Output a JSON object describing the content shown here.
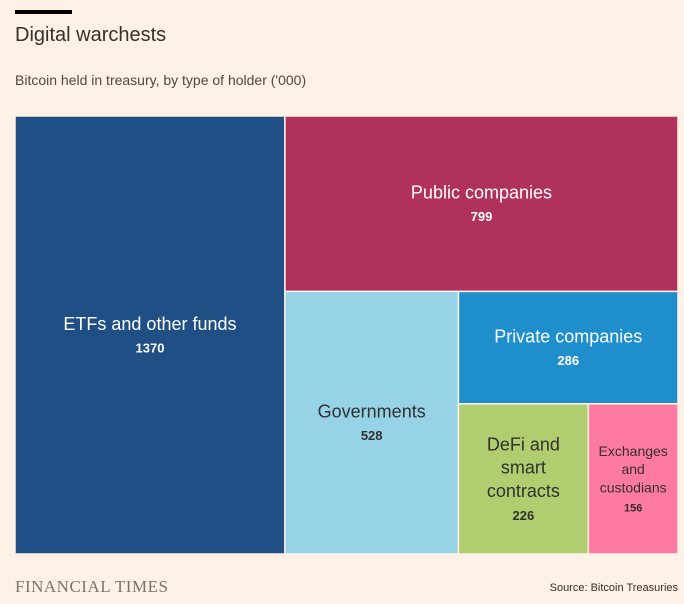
{
  "title": "Digital warchests",
  "subtitle": "Bitcoin held in treasury, by type of holder ('000)",
  "source": "Source: Bitcoin Treasuries",
  "logo": "FINANCIAL TIMES",
  "chart_data": {
    "type": "treemap",
    "title": "Digital warchests",
    "subtitle": "Bitcoin held in treasury, by type of holder ('000)",
    "unit": "thousand BTC",
    "items": [
      {
        "name": "ETFs and other funds",
        "label_lines": [
          "ETFs and other funds"
        ],
        "value": 1370,
        "color": "#1f4f85",
        "text_color": "#ffffff"
      },
      {
        "name": "Public companies",
        "label_lines": [
          "Public companies"
        ],
        "value": 799,
        "color": "#b0315c",
        "text_color": "#ffffff"
      },
      {
        "name": "Governments",
        "label_lines": [
          "Governments"
        ],
        "value": 528,
        "color": "#96d3e6",
        "text_color": "#33302e"
      },
      {
        "name": "Private companies",
        "label_lines": [
          "Private companies"
        ],
        "value": 286,
        "color": "#1e8ecd",
        "text_color": "#ffffff"
      },
      {
        "name": "DeFi and smart contracts",
        "label_lines": [
          "DeFi and",
          "smart",
          "contracts"
        ],
        "value": 226,
        "color": "#b0cd70",
        "text_color": "#33302e"
      },
      {
        "name": "Exchanges and custodians",
        "label_lines": [
          "Exchanges",
          "and",
          "custodians"
        ],
        "value": 156,
        "color": "#ff7aa3",
        "text_color": "#33302e"
      }
    ]
  }
}
